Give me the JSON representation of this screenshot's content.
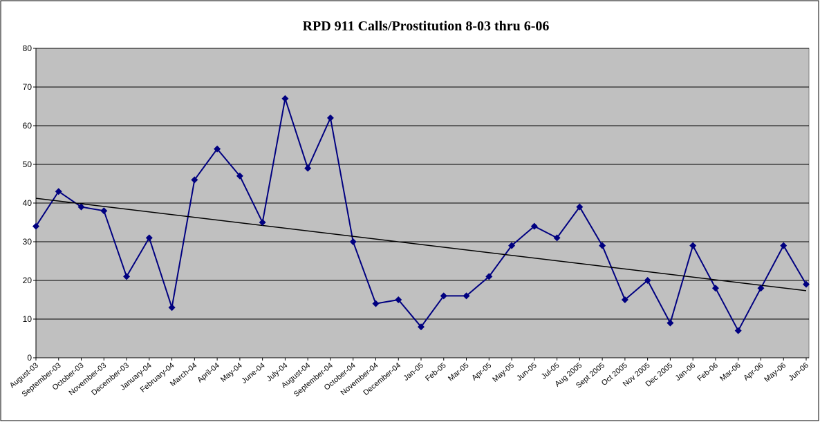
{
  "chart_data": {
    "type": "line",
    "title": "RPD 911 Calls/Prostitution 8-03 thru 6-06",
    "categories": [
      "August-03",
      "September-03",
      "October-03",
      "November-03",
      "December-03",
      "January-04",
      "February-04",
      "March-04",
      "April-04",
      "May-04",
      "June-04",
      "July-04",
      "August-04",
      "September-04",
      "October-04",
      "November-04",
      "December-04",
      "Jan-05",
      "Feb-05",
      "Mar-05",
      "Apr-05",
      "May-05",
      "Jun-05",
      "Jul-05",
      "Aug 2005",
      "Sept 2005",
      "Oct 2005",
      "Nov 2005",
      "Dec 2005",
      "Jan-06",
      "Feb-06",
      "Mar-06",
      "Apr-06",
      "May-06",
      "Jun-06"
    ],
    "series": [
      {
        "color": "#000080",
        "values": [
          34,
          43,
          39,
          38,
          21,
          31,
          13,
          46,
          54,
          47,
          35,
          67,
          49,
          62,
          30,
          14,
          15,
          8,
          16,
          16,
          21,
          29,
          34,
          31,
          39,
          29,
          15,
          20,
          9,
          29,
          18,
          7,
          18,
          29,
          19
        ]
      }
    ],
    "trendline": true,
    "ylim": [
      0,
      80
    ],
    "yticks": [
      0,
      10,
      20,
      30,
      40,
      50,
      60,
      70,
      80
    ],
    "grid": true
  }
}
